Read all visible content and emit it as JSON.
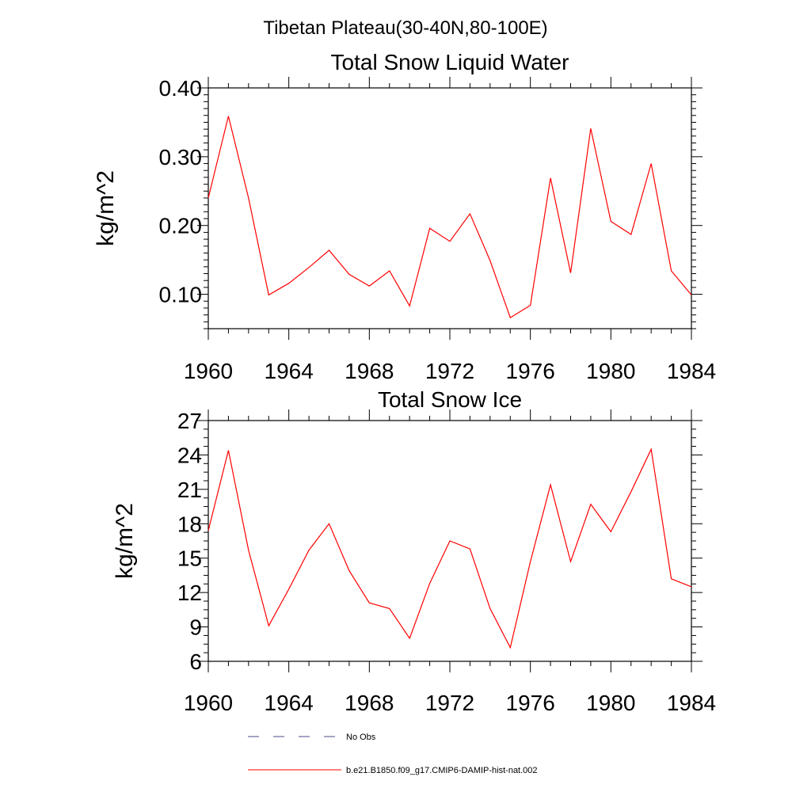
{
  "figure_title": "Tibetan Plateau(30-40N,80-100E)",
  "chart_data": [
    {
      "type": "line",
      "title": "Total Snow Liquid Water",
      "xlabel": "",
      "ylabel": "kg/m^2",
      "xlim": [
        1960,
        1984
      ],
      "ylim": [
        0.05,
        0.4
      ],
      "x_ticks": [
        "1960",
        "1964",
        "1968",
        "1972",
        "1976",
        "1980",
        "1984"
      ],
      "y_ticks": [
        "0.10",
        "0.20",
        "0.30",
        "0.40"
      ],
      "grid": false,
      "series": [
        {
          "name": "b.e21.B1850.f09_g17.CMIP6-DAMIP-hist-nat.002",
          "color": "#ff0000",
          "x": [
            1960,
            1961,
            1962,
            1963,
            1964,
            1965,
            1966,
            1967,
            1968,
            1969,
            1970,
            1971,
            1972,
            1973,
            1974,
            1975,
            1976,
            1977,
            1978,
            1979,
            1980,
            1981,
            1982,
            1983,
            1984
          ],
          "values": [
            0.24,
            0.359,
            0.24,
            0.099,
            0.116,
            0.139,
            0.164,
            0.129,
            0.112,
            0.134,
            0.083,
            0.196,
            0.177,
            0.217,
            0.149,
            0.066,
            0.084,
            0.269,
            0.131,
            0.341,
            0.206,
            0.187,
            0.29,
            0.134,
            0.099
          ]
        }
      ]
    },
    {
      "type": "line",
      "title": "Total Snow Ice",
      "xlabel": "",
      "ylabel": "kg/m^2",
      "xlim": [
        1960,
        1984
      ],
      "ylim": [
        6,
        27
      ],
      "x_ticks": [
        "1960",
        "1964",
        "1968",
        "1972",
        "1976",
        "1980",
        "1984"
      ],
      "y_ticks": [
        "6",
        "9",
        "12",
        "15",
        "18",
        "21",
        "24",
        "27"
      ],
      "grid": false,
      "series": [
        {
          "name": "b.e21.B1850.f09_g17.CMIP6-DAMIP-hist-nat.002",
          "color": "#ff0000",
          "x": [
            1960,
            1961,
            1962,
            1963,
            1964,
            1965,
            1966,
            1967,
            1968,
            1969,
            1970,
            1971,
            1972,
            1973,
            1974,
            1975,
            1976,
            1977,
            1978,
            1979,
            1980,
            1981,
            1982,
            1983,
            1984
          ],
          "values": [
            17.4,
            24.4,
            15.7,
            9.1,
            12.3,
            15.7,
            18.0,
            13.9,
            11.1,
            10.6,
            8.0,
            12.8,
            16.5,
            15.8,
            10.6,
            7.2,
            14.7,
            21.4,
            14.7,
            19.7,
            17.3,
            20.8,
            24.5,
            13.2,
            12.5
          ]
        }
      ]
    }
  ],
  "legend": {
    "placement": "bottom",
    "items": [
      {
        "label": "No Obs",
        "style": "dashed",
        "color": "#4b4b8c"
      },
      {
        "label": "b.e21.B1850.f09_g17.CMIP6-DAMIP-hist-nat.002",
        "style": "solid",
        "color": "#ff0000"
      }
    ]
  }
}
